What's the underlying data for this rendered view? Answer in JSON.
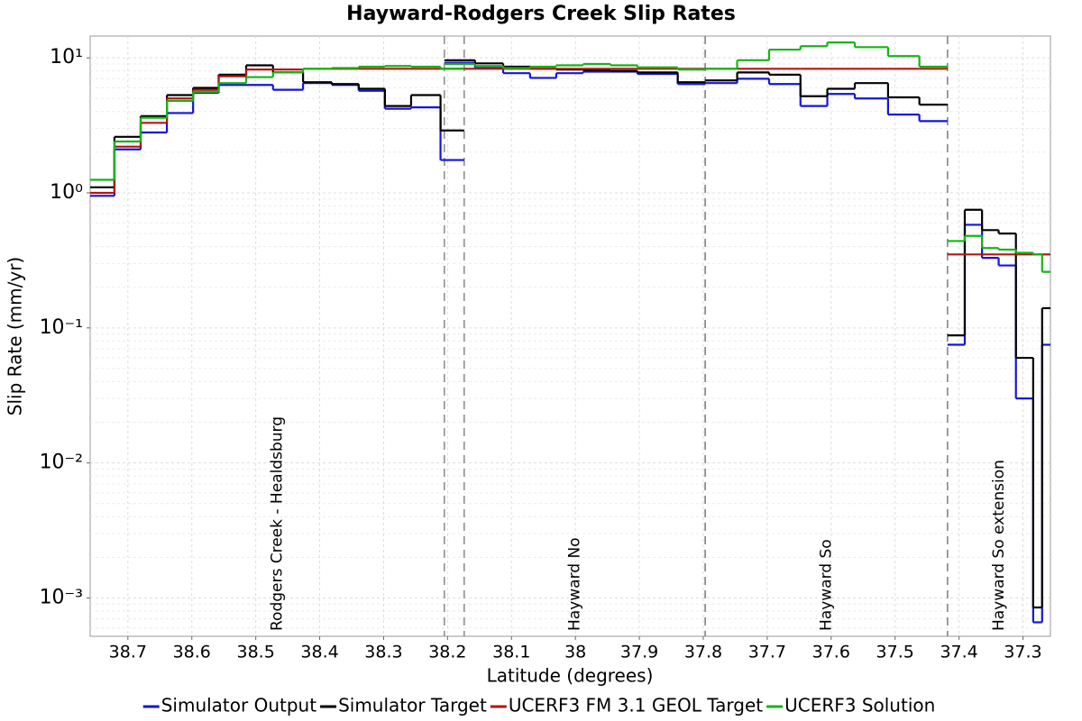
{
  "chart_data": {
    "type": "step",
    "title": "Hayward-Rodgers Creek Slip Rates",
    "x_label": "Latitude (degrees)",
    "y_label": "Slip Rate (mm/yr)",
    "log_y": true,
    "grid": true,
    "xlim": [
      38.759,
      37.257
    ],
    "ylim": [
      0.00052,
      14.5
    ],
    "xticks": [
      38.7,
      38.6,
      38.5,
      38.4,
      38.3,
      38.2,
      38.1,
      38,
      37.9,
      37.8,
      37.7,
      37.6,
      37.5,
      37.4,
      37.3
    ],
    "yticks": [
      {
        "value": 0.001,
        "label": "10⁻³"
      },
      {
        "value": 0.01,
        "label": "10⁻²"
      },
      {
        "value": 0.1,
        "label": "10⁻¹"
      },
      {
        "value": 1,
        "label": "10⁰"
      },
      {
        "value": 10,
        "label": "10¹"
      }
    ],
    "sections": [
      {
        "label": "Rodgers Creek - Healdsburg",
        "bins": [
          38.759,
          38.721,
          38.68,
          38.639,
          38.598,
          38.558,
          38.515,
          38.473,
          38.426,
          38.381,
          38.339,
          38.298,
          38.257,
          38.211,
          38.174
        ]
      },
      {
        "label": "Hayward No",
        "bins": [
          38.205,
          38.157,
          38.113,
          38.071,
          38.03,
          37.988,
          37.945,
          37.903,
          37.84,
          37.797
        ]
      },
      {
        "label": "Hayward So",
        "bins": [
          37.797,
          37.747,
          37.697,
          37.648,
          37.606,
          37.563,
          37.511,
          37.462,
          37.418
        ]
      },
      {
        "label": "Hayward So extension",
        "bins": [
          37.418,
          37.391,
          37.364,
          37.338,
          37.311,
          37.284,
          37.27,
          37.257
        ]
      }
    ],
    "series": [
      {
        "name": "Simulator Output",
        "color": "#1414dc",
        "values": [
          [
            0.95,
            2.1,
            2.8,
            3.9,
            5.5,
            6.3,
            6.3,
            5.8,
            6.5,
            6.3,
            5.7,
            4.2,
            4.3,
            1.75
          ],
          [
            9.2,
            8.4,
            7.7,
            7.1,
            7.7,
            7.9,
            7.9,
            7.6,
            6.4
          ],
          [
            6.5,
            7.0,
            6.4,
            4.4,
            5.4,
            5.0,
            3.8,
            3.4
          ],
          [
            0.075,
            0.58,
            0.33,
            0.29,
            0.03,
            0.00066,
            0.075
          ]
        ]
      },
      {
        "name": "Simulator Target",
        "color": "#000000",
        "values": [
          [
            1.1,
            2.6,
            3.7,
            5.3,
            6.0,
            7.5,
            8.8,
            7.8,
            6.6,
            6.4,
            5.9,
            4.4,
            5.3,
            2.9
          ],
          [
            9.6,
            9.1,
            8.6,
            8.3,
            8.2,
            8.1,
            8.0,
            7.8,
            6.6
          ],
          [
            6.8,
            7.8,
            7.5,
            5.2,
            5.9,
            6.5,
            5.1,
            4.5
          ],
          [
            0.088,
            0.75,
            0.53,
            0.5,
            0.06,
            0.00085,
            0.14
          ]
        ]
      },
      {
        "name": "UCERF3 FM 3.1 GEOL Target",
        "color": "#b41414",
        "values": [
          [
            1.0,
            2.2,
            3.3,
            5.0,
            5.8,
            7.3,
            8.2,
            8.2,
            8.3,
            8.3,
            8.3,
            8.3,
            8.3,
            8.3
          ],
          [
            8.3,
            8.3,
            8.3,
            8.3,
            8.3,
            8.3,
            8.3,
            8.3,
            8.3
          ],
          [
            8.3,
            8.3,
            8.3,
            8.3,
            8.3,
            8.3,
            8.3,
            8.3
          ],
          [
            0.35,
            0.35,
            0.35,
            0.35,
            0.35,
            0.35,
            0.35
          ]
        ]
      },
      {
        "name": "UCERF3 Solution",
        "color": "#14b414",
        "values": [
          [
            1.25,
            2.4,
            3.6,
            4.8,
            5.6,
            6.5,
            7.2,
            7.8,
            8.3,
            8.4,
            8.6,
            8.7,
            8.6,
            8.3
          ],
          [
            9.0,
            8.7,
            8.4,
            8.6,
            8.8,
            9.0,
            8.8,
            8.5,
            8.2
          ],
          [
            8.3,
            9.6,
            11.5,
            12.2,
            13.0,
            12.0,
            10.3,
            8.6
          ],
          [
            0.44,
            0.48,
            0.39,
            0.38,
            0.36,
            0.35,
            0.26
          ]
        ]
      }
    ]
  }
}
